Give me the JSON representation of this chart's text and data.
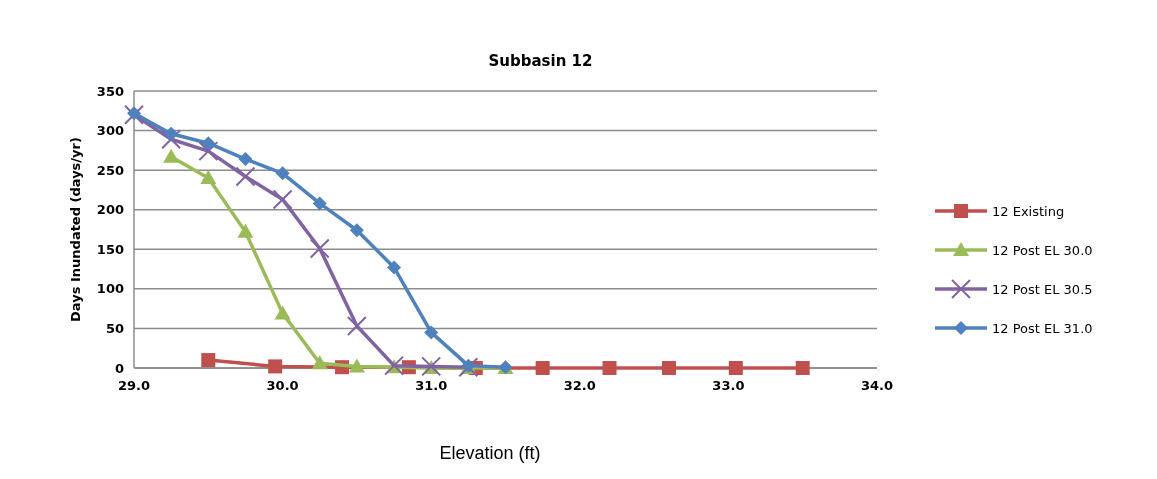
{
  "chart_data": {
    "type": "line",
    "title": "Subbasin 12",
    "xlabel": "Elevation (ft)",
    "ylabel": "Days Inundated (days/yr)",
    "xlim": [
      29.0,
      34.0
    ],
    "xticks": [
      {
        "value": 29,
        "label": "29.0"
      },
      {
        "value": 30,
        "label": "30.0"
      },
      {
        "value": 31,
        "label": "31.0"
      },
      {
        "value": 32,
        "label": "32.0"
      },
      {
        "value": 33,
        "label": "33.0"
      },
      {
        "value": 34,
        "label": "34.0"
      }
    ],
    "ylim": [
      0,
      350
    ],
    "yticks": [
      0,
      50,
      100,
      150,
      200,
      250,
      300,
      350
    ],
    "grid": "y",
    "legend": "right",
    "series": [
      {
        "name": "12 Existing",
        "color": "#c0504d",
        "marker": "square",
        "x": [
          29.5,
          29.95,
          30.4,
          30.85,
          31.3,
          31.75,
          32.2,
          32.6,
          33.05,
          33.5
        ],
        "values": [
          10,
          2,
          1,
          1,
          0,
          0,
          0,
          0,
          0,
          0
        ]
      },
      {
        "name": "12 Post EL 30.0",
        "color": "#9bbb59",
        "marker": "triangle",
        "x": [
          29.25,
          29.5,
          29.75,
          30.0,
          30.25,
          30.5,
          30.75,
          31.0,
          31.25,
          31.5
        ],
        "values": [
          267,
          240,
          172,
          69,
          6,
          2,
          1,
          0,
          0,
          0
        ]
      },
      {
        "name": "12 Post EL 30.5",
        "color": "#8064a2",
        "marker": "cross",
        "x": [
          29.0,
          29.25,
          29.5,
          29.75,
          30.0,
          30.25,
          30.5,
          30.75,
          31.0,
          31.25
        ],
        "values": [
          320,
          289,
          274,
          242,
          213,
          151,
          53,
          3,
          2,
          1
        ]
      },
      {
        "name": "12 Post EL 31.0",
        "color": "#4f81bd",
        "marker": "diamond",
        "x": [
          29.0,
          29.25,
          29.5,
          29.75,
          30.0,
          30.25,
          30.5,
          30.75,
          31.0,
          31.25,
          31.5
        ],
        "values": [
          322,
          296,
          284,
          264,
          246,
          208,
          174,
          127,
          45,
          3,
          1
        ]
      }
    ]
  }
}
